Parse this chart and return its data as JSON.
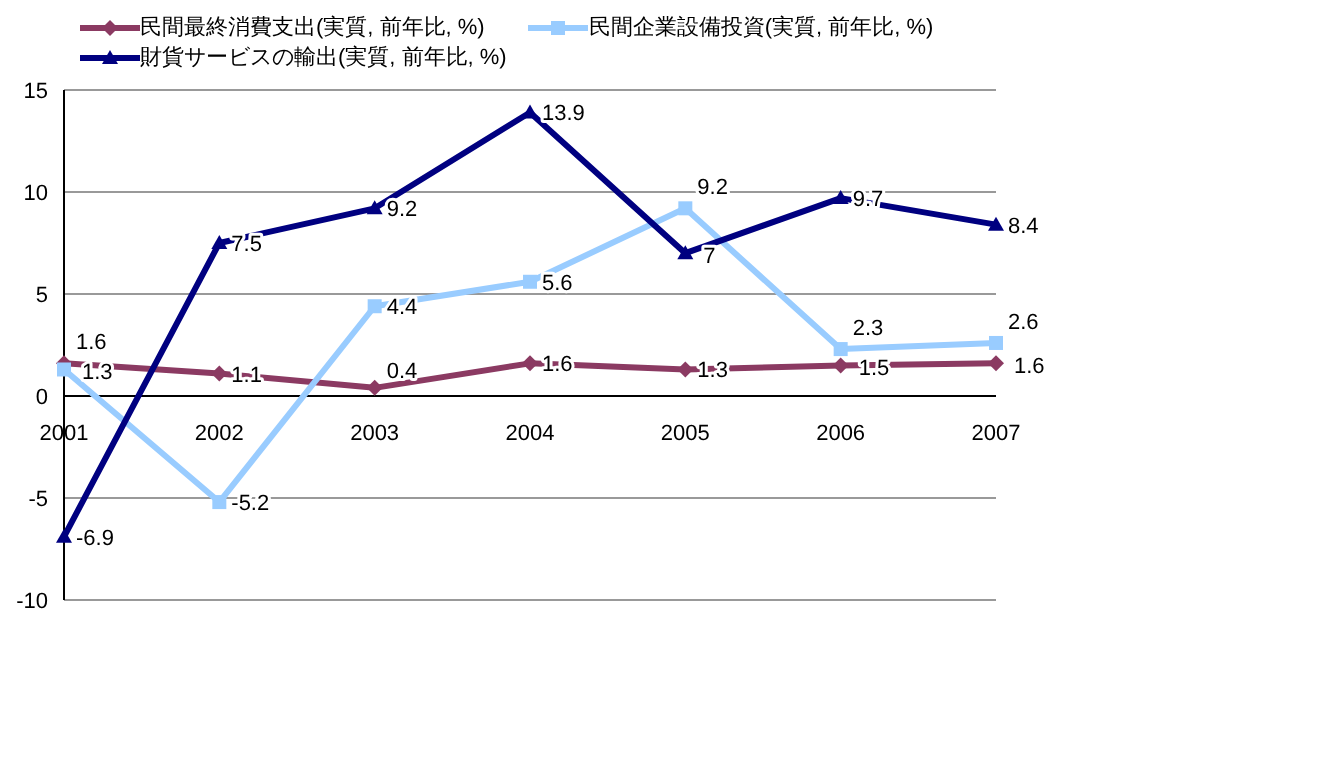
{
  "chart_data": {
    "type": "line",
    "categories": [
      "2001",
      "2002",
      "2003",
      "2004",
      "2005",
      "2006",
      "2007"
    ],
    "series": [
      {
        "name": "民間最終消費支出(実質, 前年比, %)",
        "color": "#8b3a62",
        "marker": "diamond",
        "values": [
          1.6,
          1.1,
          0.4,
          1.6,
          1.3,
          1.5,
          1.6
        ]
      },
      {
        "name": "民間企業設備投資(実質, 前年比, %)",
        "color": "#99ccff",
        "marker": "square",
        "values": [
          1.3,
          -5.2,
          4.4,
          5.6,
          9.2,
          2.3,
          2.6
        ]
      },
      {
        "name": "財貨サービスの輸出(実質, 前年比, %)",
        "color": "#000080",
        "marker": "triangle",
        "values": [
          -6.9,
          7.5,
          9.2,
          13.9,
          7,
          9.7,
          8.4
        ]
      }
    ],
    "ylim": [
      -10,
      15
    ],
    "yticks": [
      -10,
      -5,
      0,
      5,
      10,
      15
    ],
    "grid": "y",
    "legend": "top",
    "data_labels": true,
    "line_style": "solid"
  }
}
